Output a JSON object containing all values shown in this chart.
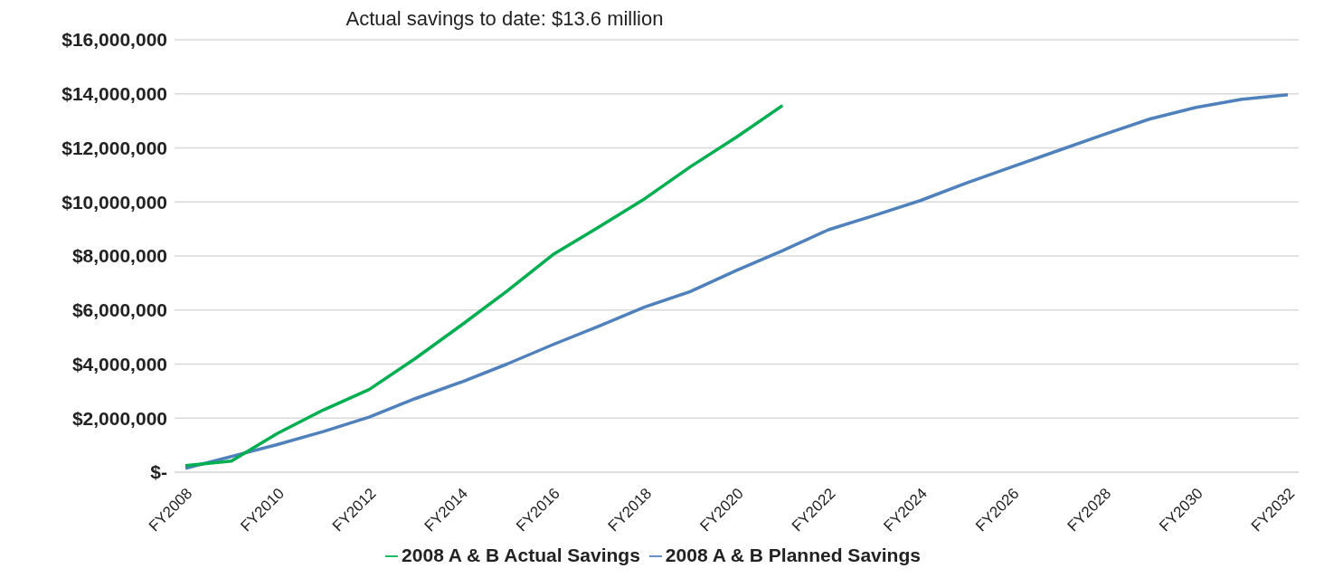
{
  "chart_data": {
    "type": "line",
    "subtitle": "Actual savings to date: $13.6 million",
    "categories": [
      "FY2008",
      null,
      "FY2010",
      null,
      "FY2012",
      null,
      "FY2014",
      null,
      "FY2016",
      null,
      "FY2018",
      null,
      "FY2020",
      null,
      "FY2022",
      null,
      "FY2024",
      null,
      "FY2026",
      null,
      "FY2028",
      null,
      "FY2030",
      null,
      "FY2032"
    ],
    "series": [
      {
        "name": "2008 A & B Planned Savings",
        "color": "#4f81bd",
        "values": [
          140000,
          580000,
          1020000,
          1500000,
          2040000,
          2720000,
          3330000,
          4000000,
          4720000,
          5400000,
          6110000,
          6690000,
          7470000,
          8200000,
          8970000,
          9500000,
          10050000,
          10700000,
          11300000,
          11900000,
          12500000,
          13070000,
          13500000,
          13800000,
          13970000
        ]
      },
      {
        "name": "2008 A & B Actual Savings",
        "color": "#00b050",
        "values": [
          240000,
          410000,
          1430000,
          2300000,
          3060000,
          4200000,
          5430000,
          6700000,
          8050000,
          9070000,
          10120000,
          11310000,
          12400000,
          13570000,
          null,
          null,
          null,
          null,
          null,
          null,
          null,
          null,
          null,
          null,
          null
        ]
      }
    ],
    "ylim": [
      0,
      16000000
    ],
    "yticks": [
      {
        "value": 0,
        "label": "$-"
      },
      "$2,000,000",
      {
        "value": 4000000,
        "label": "$4,000,000"
      },
      {
        "value": 6000000,
        "label": "$6,000,000"
      },
      {
        "value": 8000000,
        "label": "$8,000,000"
      },
      {
        "value": 10000000,
        "label": "$10,000,000"
      },
      {
        "value": 12000000,
        "label": "$12,000,000"
      },
      {
        "value": 14000000,
        "label": "$14,000,000"
      },
      {
        "value": 16000000,
        "label": "$16,000,000"
      }
    ],
    "grid": "y",
    "legend": "bottom",
    "marker": "none",
    "line_style": "solid"
  }
}
